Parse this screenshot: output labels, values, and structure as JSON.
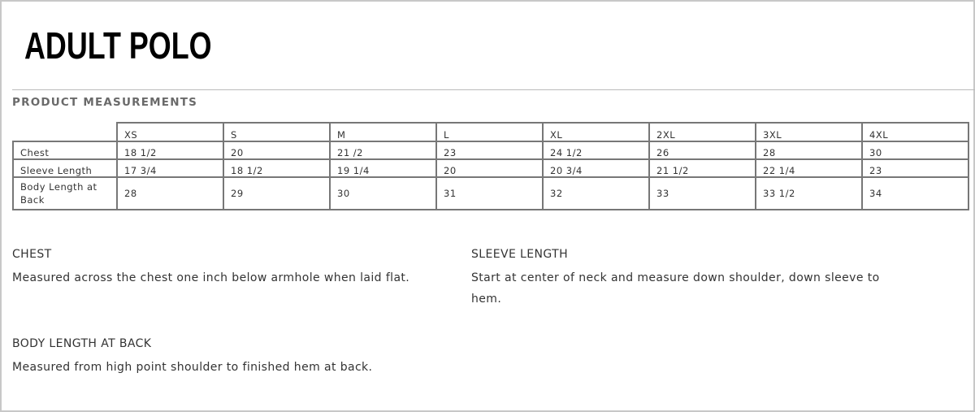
{
  "title": "ADULT POLO",
  "section_title": "PRODUCT MEASUREMENTS",
  "table": {
    "sizes": [
      "XS",
      "S",
      "M",
      "L",
      "XL",
      "2XL",
      "3XL",
      "4XL"
    ],
    "rows": [
      {
        "label": "Chest",
        "values": [
          "18 1/2",
          "20",
          "21 /2",
          "23",
          "24 1/2",
          "26",
          "28",
          "30"
        ]
      },
      {
        "label": "Sleeve Length",
        "values": [
          "17 3/4",
          "18 1/2",
          "19 1/4",
          "20",
          "20 3/4",
          "21 1/2",
          "22 1/4",
          "23"
        ]
      },
      {
        "label": "Body Length at Back",
        "values": [
          "28",
          "29",
          "30",
          "31",
          "32",
          "33",
          "33 1/2",
          "34"
        ]
      }
    ]
  },
  "notes": {
    "chest": {
      "heading": "CHEST",
      "text": "Measured across the chest one inch below armhole when laid flat."
    },
    "sleeve": {
      "heading": "SLEEVE LENGTH",
      "text": "Start at center of neck and measure down shoulder, down sleeve to hem."
    },
    "body": {
      "heading": "BODY LENGTH AT BACK",
      "text": "Measured from high point shoulder to finished hem at back."
    }
  }
}
